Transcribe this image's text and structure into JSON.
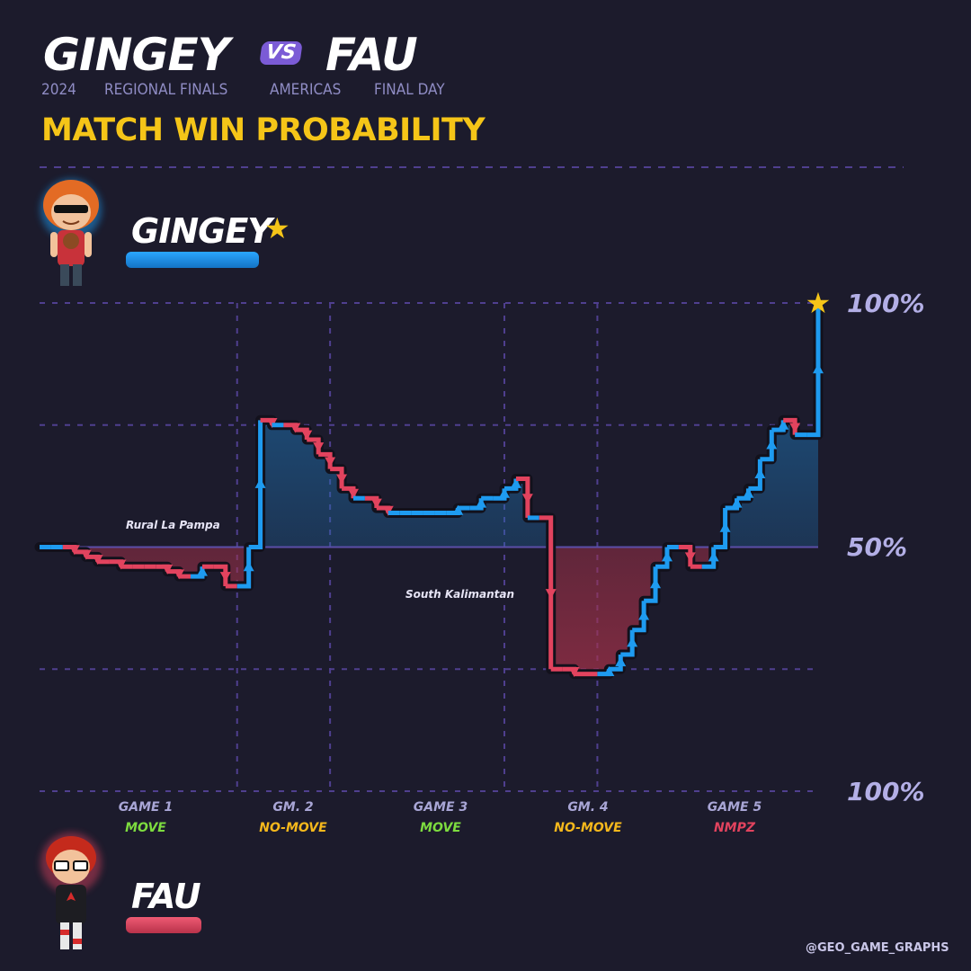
{
  "header": {
    "player1": "GINGEY",
    "vs": "VS",
    "player2": "FAU",
    "subtitle": [
      "2024",
      "REGIONAL FINALS",
      "AMERICAS",
      "FINAL DAY"
    ],
    "chart_title": "MATCH WIN PROBABILITY"
  },
  "players": {
    "top": {
      "name": "GINGEY",
      "color": "#1e9bf0",
      "winner": true
    },
    "bottom": {
      "name": "FAU",
      "color": "#e2435e"
    }
  },
  "axis": {
    "top_label": "100%",
    "mid_label": "50%",
    "bottom_label": "100%"
  },
  "games": [
    {
      "label": "GAME 1",
      "mode": "MOVE",
      "mode_color": "#7ddc3f"
    },
    {
      "label": "GM. 2",
      "mode": "NO-MOVE",
      "mode_color": "#f5b81c"
    },
    {
      "label": "GAME 3",
      "mode": "MOVE",
      "mode_color": "#7ddc3f"
    },
    {
      "label": "GM. 4",
      "mode": "NO-MOVE",
      "mode_color": "#f5b81c"
    },
    {
      "label": "GAME 5",
      "mode": "NMPZ",
      "mode_color": "#e2435e"
    }
  ],
  "annotations": [
    {
      "text": "Rural La Pampa",
      "round": 17
    },
    {
      "text": "South Kalimantan",
      "round": 45
    }
  ],
  "credit": "@GEO_GAME_GRAPHS",
  "chart_data": {
    "type": "line",
    "title": "MATCH WIN PROBABILITY",
    "y_meaning": "Gingey match win probability (%)",
    "ylim": [
      0,
      100
    ],
    "game_boundaries_after_round": [
      17,
      25,
      40,
      48
    ],
    "x": [
      0,
      1,
      2,
      3,
      4,
      5,
      6,
      7,
      8,
      9,
      10,
      11,
      12,
      13,
      14,
      15,
      16,
      17,
      18,
      19,
      20,
      21,
      22,
      23,
      24,
      25,
      26,
      27,
      28,
      29,
      30,
      31,
      32,
      33,
      34,
      35,
      36,
      37,
      38,
      39,
      40,
      41,
      42,
      43,
      44,
      45,
      46,
      47,
      48,
      49,
      50,
      51,
      52,
      53,
      54,
      55,
      56,
      57,
      58,
      59,
      60,
      61,
      62,
      63,
      64,
      65,
      66,
      67
    ],
    "y": [
      50,
      50,
      50,
      49,
      48,
      47,
      47,
      46,
      46,
      46,
      46,
      45,
      44,
      44,
      46,
      46,
      42,
      42,
      50,
      76,
      75,
      75,
      74,
      72,
      69,
      66,
      62,
      60,
      60,
      58,
      57,
      57,
      57,
      57,
      57,
      57,
      58,
      58,
      60,
      60,
      62,
      64,
      56,
      56,
      25,
      25,
      24,
      24,
      24,
      25,
      28,
      33,
      39,
      46,
      50,
      50,
      46,
      46,
      50,
      58,
      60,
      62,
      68,
      74,
      76,
      73,
      73,
      100
    ],
    "gingey_series_color": "#1e9bf0",
    "fau_series_color": "#e2435e",
    "grid": true
  }
}
